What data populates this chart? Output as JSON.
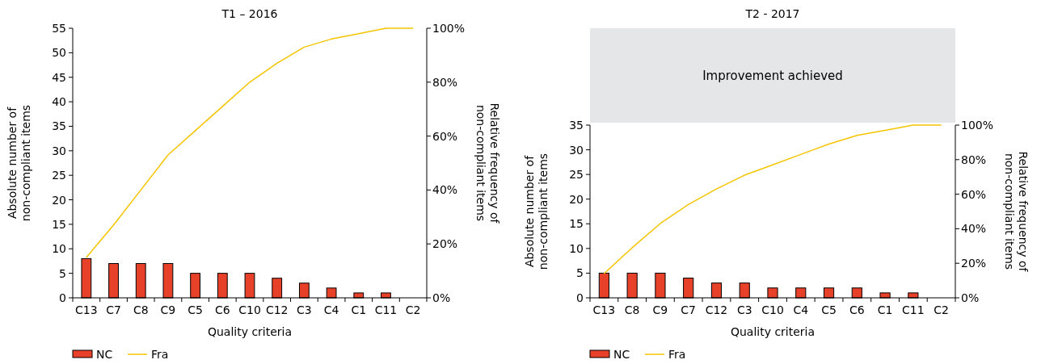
{
  "chart_data": [
    {
      "type": "bar",
      "title": "T1 – 2016",
      "xlabel": "Quality criteria",
      "ylabel": "Absolute number of\nnon-compliant items",
      "y2label": "Relative frequency of\nnon-compliant items",
      "categories": [
        "C13",
        "C7",
        "C8",
        "C9",
        "C5",
        "C6",
        "C10",
        "C12",
        "C3",
        "C4",
        "C1",
        "C11",
        "C2"
      ],
      "series": [
        {
          "name": "NC",
          "color": "#e8412a",
          "values": [
            8,
            7,
            7,
            7,
            5,
            5,
            5,
            4,
            3,
            2,
            1,
            1,
            0
          ]
        },
        {
          "name": "Fra",
          "type": "line",
          "axis": "y2",
          "color": "#f5c400",
          "values": [
            15,
            27,
            40,
            53,
            62,
            71,
            80,
            87,
            93,
            96,
            98,
            100,
            100
          ]
        }
      ],
      "ylim": [
        0,
        55
      ],
      "yticks": [
        0,
        5,
        10,
        15,
        20,
        25,
        30,
        35,
        40,
        45,
        50,
        55
      ],
      "y2lim": [
        0,
        100
      ],
      "y2ticks": [
        {
          "value": 0,
          "label": "0%"
        },
        {
          "value": 20,
          "label": "20%"
        },
        {
          "value": 40,
          "label": "40%"
        },
        {
          "value": 60,
          "label": "60%"
        },
        {
          "value": 80,
          "label": "80%"
        },
        {
          "value": 100,
          "label": "100%"
        }
      ],
      "grid": false,
      "legend": "bottom left"
    },
    {
      "type": "bar",
      "title": "T2 - 2017",
      "xlabel": "Quality criteria",
      "ylabel": "Absolute number of\nnon-compliant items",
      "y2label": "Relative frequency of\nnon-compliant items",
      "annotations": [
        "Improvement achieved"
      ],
      "categories": [
        "C13",
        "C8",
        "C9",
        "C7",
        "C12",
        "C3",
        "C10",
        "C4",
        "C5",
        "C6",
        "C1",
        "C11",
        "C2"
      ],
      "series": [
        {
          "name": "NC",
          "color": "#e8412a",
          "values": [
            5,
            5,
            5,
            4,
            3,
            3,
            2,
            2,
            2,
            2,
            1,
            1,
            0
          ]
        },
        {
          "name": "Fra",
          "type": "line",
          "axis": "y2",
          "color": "#f5c400",
          "values": [
            14,
            29,
            43,
            54,
            63,
            71,
            77,
            83,
            89,
            94,
            97,
            100,
            100
          ]
        }
      ],
      "ylim": [
        0,
        35
      ],
      "yticks": [
        0,
        5,
        10,
        15,
        20,
        25,
        30,
        35
      ],
      "y2lim": [
        0,
        100
      ],
      "y2ticks": [
        {
          "value": 0,
          "label": "0%"
        },
        {
          "value": 20,
          "label": "20%"
        },
        {
          "value": 40,
          "label": "40%"
        },
        {
          "value": 60,
          "label": "60%"
        },
        {
          "value": 80,
          "label": "80%"
        },
        {
          "value": 100,
          "label": "100%"
        }
      ],
      "grid": false,
      "legend": "bottom left"
    }
  ]
}
